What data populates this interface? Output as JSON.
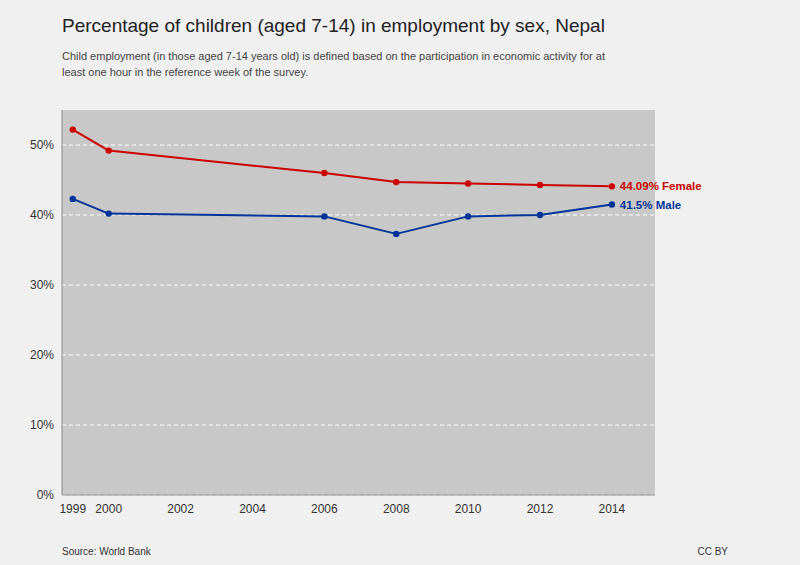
{
  "chart_data": {
    "type": "line",
    "title": "Percentage of children (aged 7-14) in employment by sex, Nepal",
    "subtitle": "Child employment (in those aged 7-14 years old) is defined based on the participation in economic activity for at\nleast one hour in the reference week of the survey.",
    "source": "Source: World Bank",
    "license": "CC BY",
    "x": [
      1999,
      2000,
      2006,
      2008,
      2010,
      2012,
      2014
    ],
    "series": [
      {
        "color": "#cc0000",
        "marker": "circle",
        "values": [
          52.2,
          49.2,
          46.0,
          44.7,
          44.5,
          44.3,
          44.09
        ]
      },
      {
        "color": "#003399",
        "marker": "circle",
        "values": [
          42.3,
          40.2,
          39.8,
          37.3,
          39.8,
          40.0,
          41.5
        ]
      }
    ],
    "annotations": [
      {
        "text": "44.09% Female",
        "x": 2014,
        "y": 44.09,
        "color": "#cc0000"
      },
      {
        "text": "41.5% Male",
        "x": 2014,
        "y": 41.5,
        "color": "#003399"
      }
    ],
    "xlim": [
      1998.7,
      2015.2
    ],
    "xticks": [
      1999,
      2000,
      2002,
      2004,
      2006,
      2008,
      2010,
      2012,
      2014
    ],
    "ylim": [
      0,
      55
    ],
    "yticks": [
      {
        "value": 0,
        "label": "0%"
      },
      {
        "value": 10,
        "label": "10%"
      },
      {
        "value": 20,
        "label": "20%"
      },
      {
        "value": 30,
        "label": "30%"
      },
      {
        "value": 40,
        "label": "40%"
      },
      {
        "value": 50,
        "label": "50%"
      }
    ],
    "grid": true
  }
}
